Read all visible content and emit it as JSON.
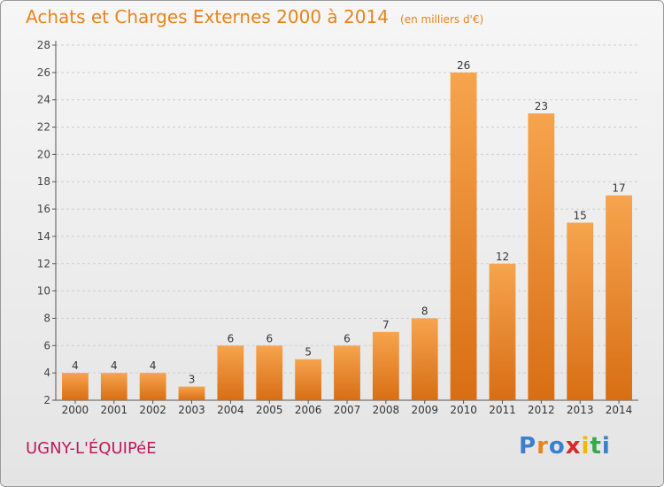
{
  "title": "Achats et Charges Externes 2000 à 2014",
  "subtitle": "(en milliers d'€)",
  "commune": "UGNY-L'ÉQUIPéE",
  "logo": {
    "text": "Proxiti",
    "colors": [
      "#3a7fd0",
      "#e8831a",
      "#3a7fd0",
      "#d62828",
      "#f2b705",
      "#3aa84a",
      "#3a7fd0"
    ]
  },
  "colors": {
    "bar_light": "#f6a44e",
    "bar_dark": "#d86e14",
    "title": "#e8831a",
    "commune": "#c2185b"
  },
  "chart_data": {
    "type": "bar",
    "categories": [
      "2000",
      "2001",
      "2002",
      "2003",
      "2004",
      "2005",
      "2006",
      "2007",
      "2008",
      "2009",
      "2010",
      "2011",
      "2012",
      "2013",
      "2014"
    ],
    "values": [
      4,
      4,
      4,
      3,
      6,
      6,
      5,
      6,
      7,
      8,
      26,
      12,
      23,
      15,
      17
    ],
    "ylim": [
      2,
      28
    ],
    "yticks": [
      2,
      4,
      6,
      8,
      10,
      12,
      14,
      16,
      18,
      20,
      22,
      24,
      26,
      28
    ],
    "grid": true,
    "xlabel": "",
    "ylabel": ""
  }
}
